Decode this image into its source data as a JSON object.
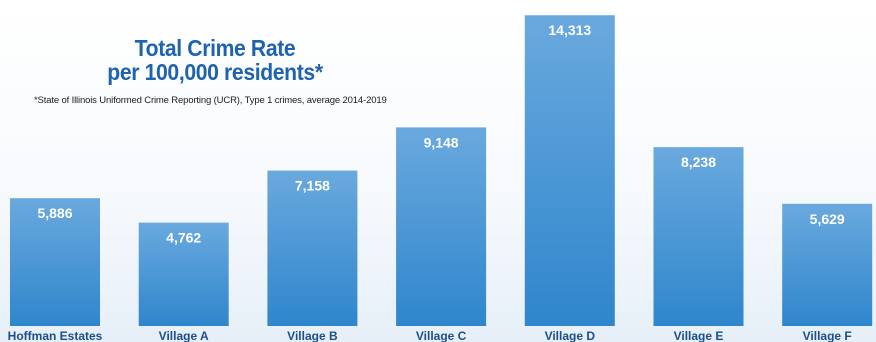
{
  "chart_data": {
    "type": "bar",
    "title_lines": [
      "Total Crime Rate",
      "per 100,000 residents*"
    ],
    "subtitle": "*State of Illinois Uniformed Crime Reporting (UCR), Type 1 crimes, average 2014-2019",
    "categories": [
      "Hoffman Estates",
      "Village A",
      "Village B",
      "Village C",
      "Village D",
      "Village E",
      "Village F"
    ],
    "values": [
      5886,
      4762,
      7158,
      9148,
      14313,
      8238,
      5629
    ],
    "value_labels": [
      "5,886",
      "4,762",
      "7,158",
      "9,148",
      "14,313",
      "8,238",
      "5,629"
    ],
    "ylim": [
      0,
      14600
    ],
    "grid": false,
    "legend": "none"
  },
  "colors": {
    "bar_top": "#6aa9de",
    "bar_bottom": "#2f86cc",
    "title": "#1f63ae",
    "value_label": "#ffffff",
    "category_label": "#1a4f8a"
  }
}
